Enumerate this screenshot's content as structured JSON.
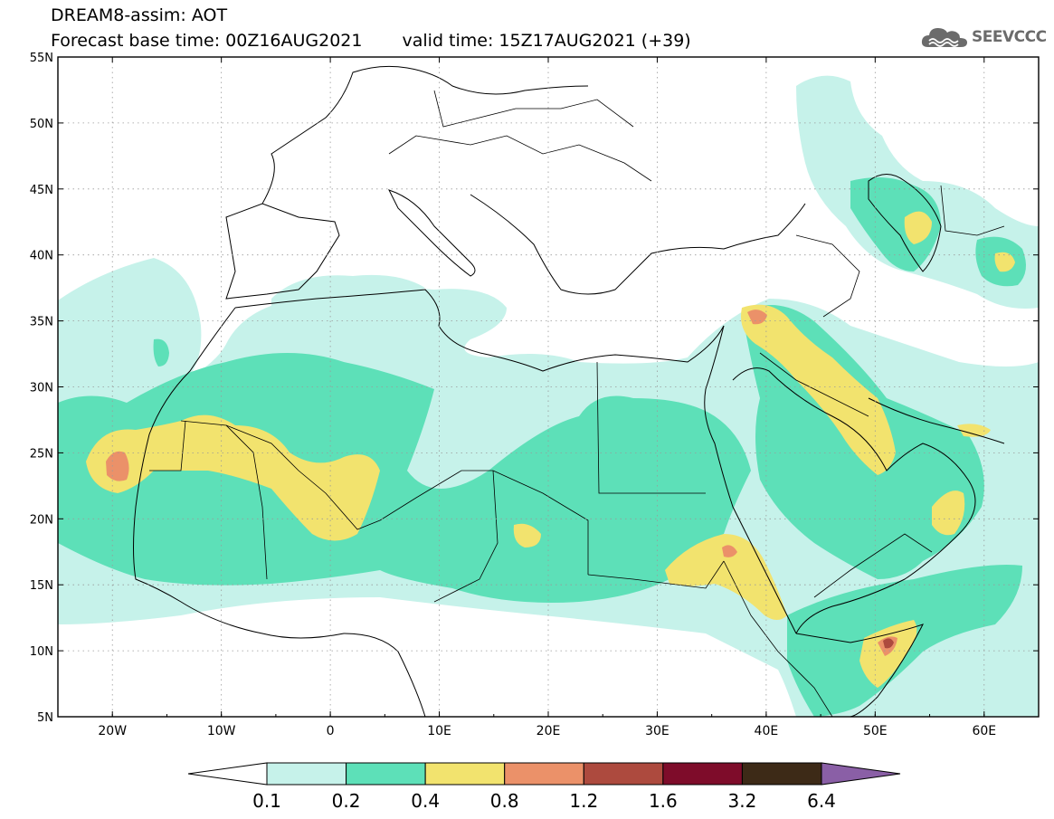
{
  "header": {
    "title_line1": "DREAM8-assim: AOT",
    "base_time": "Forecast base time: 00Z16AUG2021",
    "valid_time": "valid time: 15Z17AUG2021 (+39)",
    "logo_text": "SEEVCCC",
    "logo_icon": "cloud-icon"
  },
  "map": {
    "lon_range": [
      -25,
      65
    ],
    "lat_range": [
      5,
      55
    ],
    "lat_labels": [
      "55N",
      "50N",
      "45N",
      "40N",
      "35N",
      "30N",
      "25N",
      "20N",
      "15N",
      "10N",
      "5N"
    ],
    "lon_labels": [
      "20W",
      "10W",
      "0",
      "10E",
      "20E",
      "30E",
      "40E",
      "50E",
      "60E"
    ],
    "gridlines": "dotted",
    "background_color": "#ffffff",
    "border_color": "#000000"
  },
  "legend": {
    "labels": [
      "0.1",
      "0.2",
      "0.4",
      "0.8",
      "1.2",
      "1.6",
      "3.2",
      "6.4"
    ],
    "colors": [
      "#c6f2ea",
      "#5de0b8",
      "#f2e36e",
      "#eb9169",
      "#ad4a3e",
      "#7e0c2a",
      "#3d2a17"
    ],
    "over_color": "#8a5fa6",
    "under_color": "#ffffff"
  }
}
